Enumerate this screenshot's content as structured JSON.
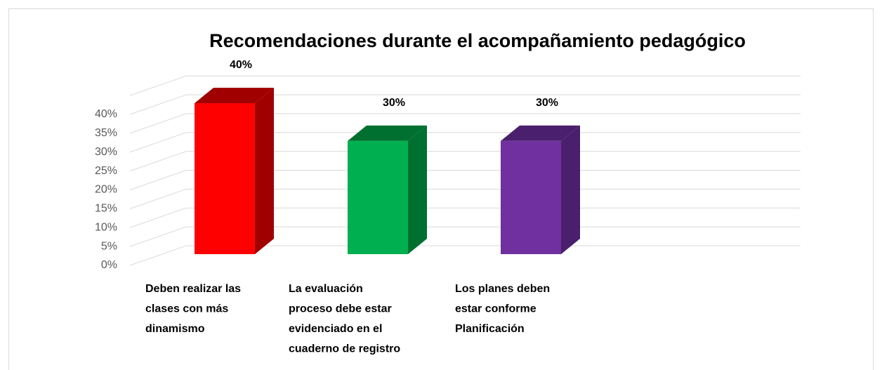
{
  "chart_data": {
    "type": "bar3d",
    "title": "Recomendaciones durante el acompañamiento pedagógico",
    "categories": [
      [
        "Deben realizar las",
        "clases con más",
        "dinamismo"
      ],
      [
        "La evaluación",
        "proceso debe estar",
        "evidenciado en el",
        "cuaderno de registro"
      ],
      [
        "Los planes deben",
        "estar conforme",
        "Planificación"
      ]
    ],
    "values": [
      40,
      30,
      30
    ],
    "value_labels": [
      "40%",
      "30%",
      "30%"
    ],
    "colors": [
      "#ff0000",
      "#00b050",
      "#7030a0"
    ],
    "side_colors": [
      "#a00000",
      "#007030",
      "#4a1f6e"
    ],
    "ylim": [
      0,
      45
    ],
    "yticks": [
      {
        "value": 0,
        "label": "0%"
      },
      {
        "value": 5,
        "label": "5%"
      },
      {
        "value": 10,
        "label": "10%"
      },
      {
        "value": 15,
        "label": "15%"
      },
      {
        "value": 20,
        "label": "20%"
      },
      {
        "value": 25,
        "label": "25%"
      },
      {
        "value": 30,
        "label": "30%"
      },
      {
        "value": 35,
        "label": "35%"
      },
      {
        "value": 40,
        "label": "40%"
      }
    ],
    "grid": true
  }
}
